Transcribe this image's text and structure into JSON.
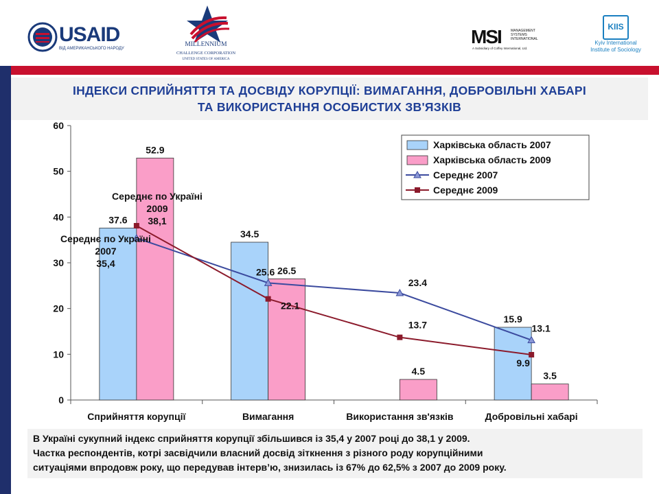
{
  "header": {
    "usaid": {
      "wordmark": "USAID",
      "tagline": "ВІД АМЕРИКАНСЬКОГО НАРОДУ"
    },
    "mcc": {
      "name": "MILLENNIUM",
      "line2": "CHALLENGE CORPORATION",
      "line3": "UNITED STATES OF AMERICA"
    },
    "msi": {
      "mark": "MSI",
      "side": "MANAGEMENT SYSTEMS INTERNATIONAL",
      "tagline": "A Subsidiary of Coffey International, Ltd."
    },
    "kiis": {
      "mark": "KIIS",
      "line1": "Kyiv International",
      "line2": "Institute of Sociology"
    }
  },
  "title": {
    "line1": "ІНДЕКСИ СПРИЙНЯТТЯ ТА ДОСВІДУ КОРУПЦІЇ: ВИМАГАННЯ, ДОБРОВІЛЬНІ ХАБАРІ",
    "line2": "ТА ВИКОРИСТАННЯ ОСОБИСТИХ ЗВ'ЯЗКІВ"
  },
  "chart_data": {
    "type": "bar",
    "categories": [
      "Сприйняття корупції",
      "Вимагання",
      "Використання зв'язків",
      "Добровільні хабарі"
    ],
    "series": [
      {
        "name": "Харківська область 2007",
        "kind": "bar",
        "color": "#a9d3fa",
        "values": [
          37.6,
          34.5,
          null,
          15.9
        ],
        "labels": [
          "37.6",
          "34.5",
          "",
          "15.9"
        ]
      },
      {
        "name": "Харківська область 2009",
        "kind": "bar",
        "color": "#fa9ec8",
        "values": [
          52.9,
          26.5,
          4.5,
          3.5
        ],
        "labels": [
          "52.9",
          "26.5",
          "4.5",
          "3.5"
        ]
      },
      {
        "name": "Середнє 2007",
        "kind": "line",
        "color": "#3b4a9e",
        "marker": "triangle",
        "values": [
          35.4,
          25.6,
          23.4,
          13.1
        ],
        "labels": [
          "",
          "25.6",
          "23.4",
          "13.1"
        ]
      },
      {
        "name": "Середнє 2009",
        "kind": "line",
        "color": "#8b1a2b",
        "marker": "square",
        "values": [
          38.1,
          22.1,
          13.7,
          9.9
        ],
        "labels": [
          "",
          "22.1",
          "13.7",
          "9.9"
        ]
      }
    ],
    "annotations": [
      {
        "lines": [
          "Середнє по Україні",
          "2009",
          "38,1"
        ]
      },
      {
        "lines": [
          "Середнє по Україні",
          "2007",
          "35,4"
        ]
      }
    ],
    "ylim": [
      0,
      60
    ],
    "yticks": [
      "0",
      "10",
      "20",
      "30",
      "40",
      "50",
      "60"
    ],
    "legend_position": "top-right",
    "grid": false
  },
  "note": {
    "line1": "В Україні сукупний індекс сприйняття корупції збільшився із 35,4 у 2007 році до 38,1 у 2009.",
    "line2": "Частка респондентів, котрі засвідчили власний досвід зіткнення з різного роду корупційними",
    "line3": "ситуаціями впродовж року, що передував інтерв’ю, знизилась із 67% до 62,5% з 2007 до 2009 року."
  }
}
